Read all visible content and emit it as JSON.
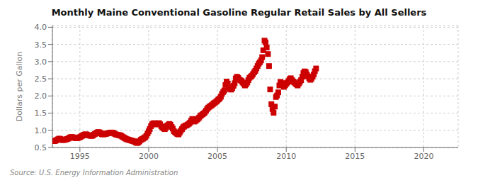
{
  "chart_data": {
    "type": "scatter",
    "title": "Monthly Maine Conventional Gasoline Regular Retail Sales by All Sellers",
    "ylabel": "Dollars per Gallon",
    "annotations": [
      "Source: U.S. Energy Information Administration"
    ],
    "color": "#cc0000",
    "marker": "square",
    "grid": true,
    "xlim": [
      1993.0,
      2022.5
    ],
    "ylim": [
      0.5,
      4.05
    ],
    "xticks": [
      1995,
      2000,
      2005,
      2010,
      2015,
      2020
    ],
    "yticks": [
      0.5,
      {
        "value": 1.0,
        "label": "1.0"
      },
      1.5,
      {
        "value": 2.0,
        "label": "2.0"
      },
      2.5,
      {
        "value": 3.0,
        "label": "3.0"
      },
      3.5,
      {
        "value": 4.0,
        "label": "4.0"
      }
    ],
    "x": [
      1993.17,
      1993.25,
      1993.33,
      1993.42,
      1993.5,
      1993.58,
      1993.67,
      1993.75,
      1993.83,
      1993.92,
      1994.0,
      1994.08,
      1994.17,
      1994.25,
      1994.33,
      1994.42,
      1994.5,
      1994.58,
      1994.67,
      1994.75,
      1994.83,
      1994.92,
      1995.0,
      1995.08,
      1995.17,
      1995.25,
      1995.33,
      1995.42,
      1995.5,
      1995.58,
      1995.67,
      1995.75,
      1995.83,
      1995.92,
      1996.0,
      1996.08,
      1996.17,
      1996.25,
      1996.33,
      1996.42,
      1996.5,
      1996.58,
      1996.67,
      1996.75,
      1996.83,
      1996.92,
      1997.0,
      1997.08,
      1997.17,
      1997.25,
      1997.33,
      1997.42,
      1997.5,
      1997.58,
      1997.67,
      1997.75,
      1997.83,
      1997.92,
      1998.0,
      1998.08,
      1998.17,
      1998.25,
      1998.33,
      1998.42,
      1998.5,
      1998.58,
      1998.67,
      1998.75,
      1998.83,
      1998.92,
      1999.0,
      1999.08,
      1999.17,
      1999.25,
      1999.33,
      1999.42,
      1999.5,
      1999.58,
      1999.67,
      1999.75,
      1999.83,
      1999.92,
      2000.0,
      2000.08,
      2000.17,
      2000.25,
      2000.33,
      2000.42,
      2000.5,
      2000.58,
      2000.67,
      2000.75,
      2000.83,
      2000.92,
      2001.0,
      2001.08,
      2001.17,
      2001.25,
      2001.33,
      2001.42,
      2001.5,
      2001.58,
      2001.67,
      2001.75,
      2001.83,
      2001.92,
      2002.0,
      2002.08,
      2002.17,
      2002.25,
      2002.33,
      2002.42,
      2002.5,
      2002.58,
      2002.67,
      2002.75,
      2002.83,
      2002.92,
      2003.0,
      2003.08,
      2003.17,
      2003.25,
      2003.33,
      2003.42,
      2003.5,
      2003.58,
      2003.67,
      2003.75,
      2003.83,
      2003.92,
      2004.0,
      2004.08,
      2004.17,
      2004.25,
      2004.33,
      2004.42,
      2004.5,
      2004.58,
      2004.67,
      2004.75,
      2004.83,
      2004.92,
      2005.0,
      2005.08,
      2005.17,
      2005.25,
      2005.33,
      2005.42,
      2005.5,
      2005.58,
      2005.67,
      2005.75,
      2005.83,
      2005.92,
      2006.0,
      2006.08,
      2006.17,
      2006.25,
      2006.33,
      2006.42,
      2006.5,
      2006.58,
      2006.67,
      2006.75,
      2006.83,
      2006.92,
      2007.0,
      2007.08,
      2007.17,
      2007.25,
      2007.33,
      2007.42,
      2007.5,
      2007.58,
      2007.67,
      2007.75,
      2007.83,
      2007.92,
      2008.0,
      2008.08,
      2008.17,
      2008.25,
      2008.33,
      2008.42,
      2008.5,
      2008.58,
      2008.67,
      2008.75,
      2008.83,
      2008.92,
      2009.0,
      2009.08,
      2009.17,
      2009.25,
      2009.33,
      2009.42,
      2009.5,
      2009.58,
      2009.67,
      2009.75,
      2009.83,
      2009.92,
      2010.0,
      2010.08,
      2010.17,
      2010.25,
      2010.33,
      2010.42,
      2010.5,
      2010.58,
      2010.67,
      2010.75,
      2010.83,
      2010.92,
      2011.0,
      2011.08,
      2011.17,
      2011.25,
      2011.33,
      2011.42,
      2011.5,
      2011.58,
      2011.67,
      2011.75,
      2011.83,
      2011.92,
      2012.0,
      2012.08,
      2012.17
    ],
    "values": [
      0.685,
      0.705,
      0.72,
      0.74,
      0.76,
      0.745,
      0.73,
      0.715,
      0.72,
      0.725,
      0.735,
      0.75,
      0.76,
      0.785,
      0.8,
      0.805,
      0.795,
      0.785,
      0.775,
      0.77,
      0.775,
      0.79,
      0.8,
      0.82,
      0.84,
      0.86,
      0.875,
      0.885,
      0.875,
      0.86,
      0.85,
      0.845,
      0.835,
      0.845,
      0.87,
      0.89,
      0.915,
      0.935,
      0.95,
      0.94,
      0.92,
      0.89,
      0.88,
      0.885,
      0.895,
      0.9,
      0.91,
      0.92,
      0.925,
      0.935,
      0.935,
      0.925,
      0.905,
      0.885,
      0.875,
      0.865,
      0.86,
      0.855,
      0.84,
      0.815,
      0.795,
      0.775,
      0.755,
      0.74,
      0.73,
      0.72,
      0.71,
      0.7,
      0.69,
      0.68,
      0.67,
      0.645,
      0.63,
      0.65,
      0.68,
      0.72,
      0.74,
      0.755,
      0.78,
      0.8,
      0.84,
      0.91,
      0.97,
      1.04,
      1.12,
      1.175,
      1.2,
      1.21,
      1.19,
      1.17,
      1.195,
      1.21,
      1.175,
      1.115,
      1.085,
      1.055,
      1.035,
      1.075,
      1.13,
      1.155,
      1.185,
      1.165,
      1.1,
      1.05,
      0.975,
      0.945,
      0.92,
      0.895,
      0.88,
      0.93,
      0.985,
      1.035,
      1.09,
      1.11,
      1.135,
      1.145,
      1.165,
      1.19,
      1.22,
      1.28,
      1.33,
      1.29,
      1.255,
      1.28,
      1.31,
      1.335,
      1.37,
      1.415,
      1.44,
      1.465,
      1.49,
      1.52,
      1.57,
      1.62,
      1.66,
      1.685,
      1.71,
      1.73,
      1.76,
      1.79,
      1.81,
      1.835,
      1.87,
      1.9,
      1.93,
      1.98,
      2.06,
      2.115,
      2.16,
      2.32,
      2.42,
      2.36,
      2.26,
      2.2,
      2.185,
      2.23,
      2.295,
      2.37,
      2.51,
      2.56,
      2.525,
      2.48,
      2.455,
      2.435,
      2.39,
      2.35,
      2.305,
      2.335,
      2.39,
      2.46,
      2.53,
      2.56,
      2.59,
      2.635,
      2.69,
      2.73,
      2.8,
      2.87,
      2.94,
      2.98,
      3.035,
      3.13,
      3.33,
      3.61,
      3.56,
      3.41,
      3.22,
      2.87,
      2.19,
      1.76,
      1.62,
      1.51,
      1.69,
      1.97,
      2.015,
      2.105,
      2.305,
      2.41,
      2.375,
      2.325,
      2.265,
      2.31,
      2.355,
      2.39,
      2.435,
      2.49,
      2.515,
      2.46,
      2.42,
      2.395,
      2.36,
      2.335,
      2.305,
      2.36,
      2.415,
      2.46,
      2.56,
      2.665,
      2.715,
      2.695,
      2.625,
      2.57,
      2.515,
      2.47,
      2.5,
      2.56,
      2.625,
      2.72,
      2.8
    ]
  }
}
